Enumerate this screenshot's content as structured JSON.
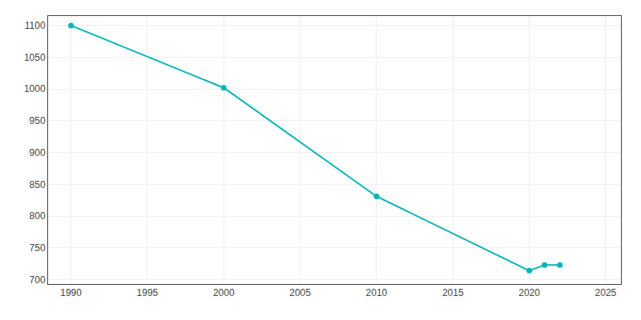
{
  "chart_data": {
    "type": "line",
    "x": [
      1990,
      2000,
      2010,
      2020,
      2021,
      2022
    ],
    "values": [
      1100,
      1002,
      831,
      714,
      723,
      723
    ],
    "color": "#00b5b8",
    "marker": "circle",
    "xlim": [
      1988.5,
      2026
    ],
    "ylim": [
      693,
      1115
    ],
    "xticks": [
      1990,
      1995,
      2000,
      2005,
      2010,
      2015,
      2020,
      2025
    ],
    "yticks": [
      700,
      750,
      800,
      850,
      900,
      950,
      1000,
      1050,
      1100
    ],
    "grid": true
  }
}
